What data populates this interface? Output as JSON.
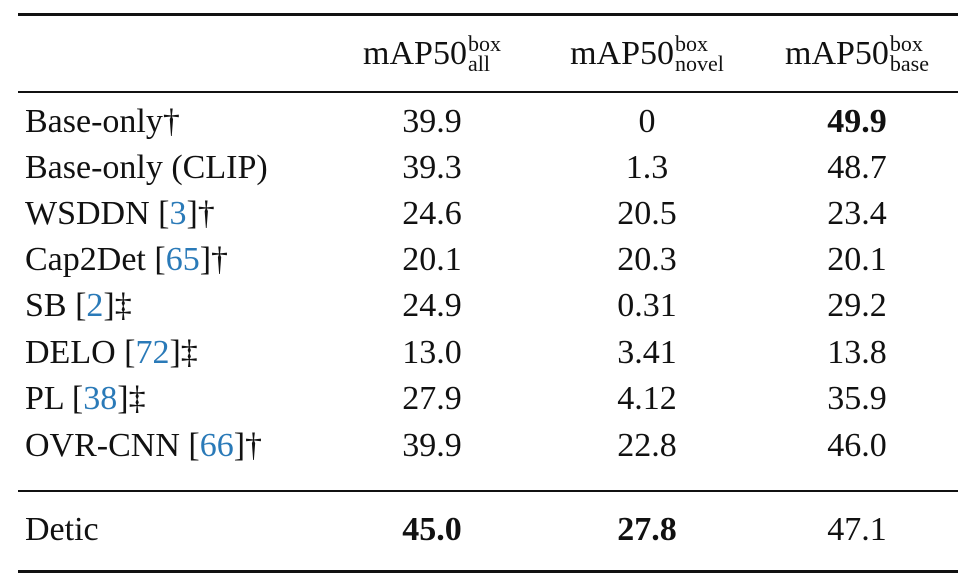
{
  "table": {
    "columns": [
      {
        "base": "mAP50",
        "sup": "box",
        "sub": "all"
      },
      {
        "base": "mAP50",
        "sup": "box",
        "sub": "novel"
      },
      {
        "base": "mAP50",
        "sup": "box",
        "sub": "base"
      }
    ],
    "rows": [
      {
        "label": {
          "text": "Base-only†"
        },
        "values": [
          "39.9",
          "0",
          "49.9"
        ],
        "bold": [
          2
        ]
      },
      {
        "label": {
          "text": "Base-only (CLIP)"
        },
        "values": [
          "39.3",
          "1.3",
          "48.7"
        ],
        "bold": []
      },
      {
        "label": {
          "text": "WSDDN [",
          "cite": "3",
          "after": "]†"
        },
        "values": [
          "24.6",
          "20.5",
          "23.4"
        ],
        "bold": []
      },
      {
        "label": {
          "text": "Cap2Det [",
          "cite": "65",
          "after": "]†"
        },
        "values": [
          "20.1",
          "20.3",
          "20.1"
        ],
        "bold": []
      },
      {
        "label": {
          "text": "SB [",
          "cite": "2",
          "after": "]‡"
        },
        "values": [
          "24.9",
          "0.31",
          "29.2"
        ],
        "bold": []
      },
      {
        "label": {
          "text": "DELO [",
          "cite": "72",
          "after": "]‡"
        },
        "values": [
          "13.0",
          "3.41",
          "13.8"
        ],
        "bold": []
      },
      {
        "label": {
          "text": "PL [",
          "cite": "38",
          "after": "]‡"
        },
        "values": [
          "27.9",
          "4.12",
          "35.9"
        ],
        "bold": []
      },
      {
        "label": {
          "text": "OVR-CNN [",
          "cite": "66",
          "after": "]†"
        },
        "values": [
          "39.9",
          "22.8",
          "46.0"
        ],
        "bold": []
      },
      {
        "label": {
          "text": "Detic"
        },
        "values": [
          "45.0",
          "27.8",
          "47.1"
        ],
        "bold": [
          0,
          1
        ]
      }
    ]
  }
}
